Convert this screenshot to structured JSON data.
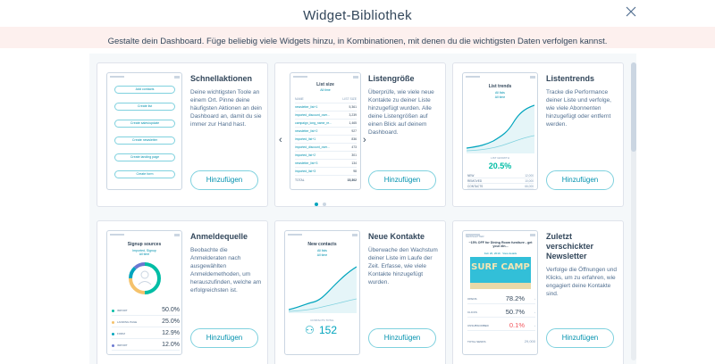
{
  "modal": {
    "title": "Widget-Bibliothek",
    "subtitle": "Gestalte dein Dashboard. Füge beliebig viele Widgets hinzu, in Kombinationen, mit denen du die wichtigsten Daten verfolgen kannst."
  },
  "colors": {
    "accent": "#00a4bd",
    "link": "#0091ae",
    "text": "#33475b",
    "muted": "#516f90"
  },
  "widgets": [
    {
      "title": "Schnellaktionen",
      "description": "Deine wichtigsten Toole an einem Ort. Pinne deine häufigsten Aktionen an dein Dashboard an, damit du sie immer zur Hand hast.",
      "button": "Hinzufügen",
      "preview": {
        "header": "QUICK ACTIONS",
        "actions": [
          "Add contacts",
          "Create list",
          "Create sales/update",
          "Create newsletter",
          "Create landing page",
          "Create form"
        ]
      }
    },
    {
      "title": "Listengröße",
      "description": "Überprüfe, wie viele neue Kontakte zu deiner Liste hinzugefügt wurden. Alle deine Listengrößen auf einen Blick auf deinem Dashboard.",
      "button": "Hinzufügen",
      "preview": {
        "title": "List size",
        "filter": "All time",
        "col_name": "NAME",
        "col_size": "LIST SIZE",
        "rows": [
          {
            "n": "newsletter_list+1",
            "v": "5,361"
          },
          {
            "n": "imported_discount_over...",
            "v": "3,239"
          },
          {
            "n": "campaign_long_name_re...",
            "v": "1,465"
          },
          {
            "n": "newsletter_list+2",
            "v": "927"
          },
          {
            "n": "imported_list+1",
            "v": "836"
          },
          {
            "n": "imported_discount_over...",
            "v": "473"
          },
          {
            "n": "imported_list+2",
            "v": "301"
          },
          {
            "n": "newsletter_list+3",
            "v": "134"
          },
          {
            "n": "imported_list+3",
            "v": "98"
          }
        ],
        "total_label": "TOTAL",
        "total": "15,302"
      },
      "pager": "2"
    },
    {
      "title": "Listentrends",
      "description": "Tracke die Performance deiner Liste und verfolge, wie viele Abonnenten hinzugefügt oder entfernt werden.",
      "button": "Hinzufügen",
      "preview": {
        "title": "List trends",
        "filter1": "All lists",
        "filter2": "All time",
        "kpi_label": "LIST GROWTH",
        "kpi": "20.5%",
        "rows": [
          {
            "k": "NEW",
            "v": "12,000"
          },
          {
            "k": "REMOVED",
            "v": "10,000"
          },
          {
            "k": "CONTACTS",
            "v": "66,000"
          }
        ]
      }
    },
    {
      "title": "Anmeldequelle",
      "description": "Beobachte die Anmelderaten nach ausgewählten Anmeldemethoden, um herauszufinden, welche am erfolgreichsten ist.",
      "button": "Hinzufügen",
      "preview": {
        "title": "Signup sources",
        "filter": "Imported, Signup\nAll time",
        "rows": [
          {
            "k": "IMPORT",
            "v": "50.0%",
            "c": "#00bda5"
          },
          {
            "k": "LANDING PAGE",
            "v": "25.0%",
            "c": "#f5c26b"
          },
          {
            "k": "FORM",
            "v": "12.9%",
            "c": "#00a4bd"
          },
          {
            "k": "IMPORT",
            "v": "12.0%",
            "c": "#6a78d1"
          }
        ]
      }
    },
    {
      "title": "Neue Kontakte",
      "description": "Überwache den Wachstum deiner Liste im Laufe der Zeit. Erfasse, wie viele Kontakte hinzugefügt wurden.",
      "button": "Hinzufügen",
      "preview": {
        "title": "New contacts",
        "filter1": "All lists",
        "filter2": "All time",
        "kpi_label": "CONTACTS TOTAL",
        "kpi": "152"
      }
    },
    {
      "title": "Zuletzt verschickter Newsletter",
      "description": "Verfolge die Öffnungen und Klicks, um zu erfahren, wie engagiert deine Kontakte sind.",
      "button": "Hinzufügen",
      "preview": {
        "header": "NEWSLETTER",
        "promo": "~15% OFF for Dining Room furniture - get your din...",
        "date": "Feb 20, 2019 · View details",
        "image_text": "SURF CAMP",
        "rows": [
          {
            "k": "OPENS",
            "v": "78.2%",
            "c": "#33475b"
          },
          {
            "k": "CLICKS",
            "v": "50.7%",
            "c": "#33475b"
          },
          {
            "k": "UNSUBSCRIBED",
            "v": "0.1%",
            "c": "#f2545b"
          }
        ],
        "total_label": "TOTAL SENDS",
        "total": "29,000"
      }
    }
  ]
}
